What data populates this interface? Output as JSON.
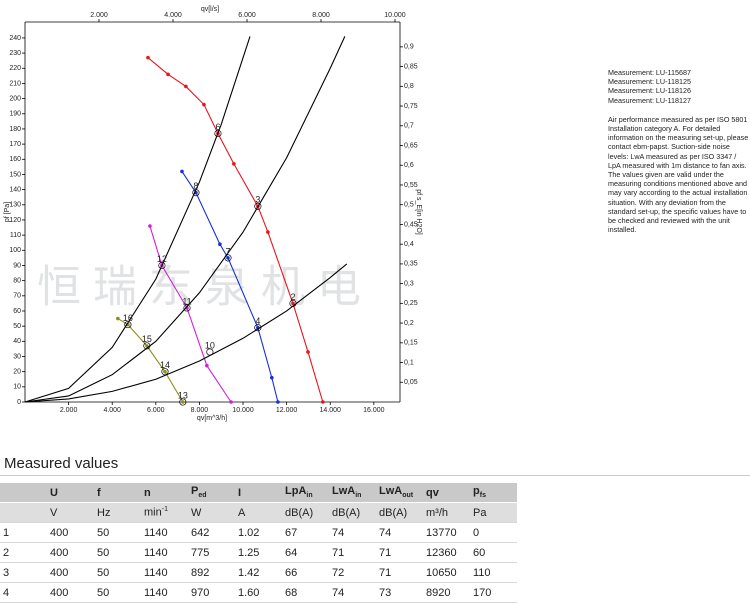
{
  "chart_data": {
    "type": "line",
    "x_label": "qv[m^3/h]",
    "x2_label": "qv[l/s]",
    "y_label": "pf [Pa]",
    "y2_label": "pf s_E[in H2O]",
    "xlim": [
      0,
      17200
    ],
    "xticks": [
      {
        "value": 2000,
        "label": "2.000"
      },
      {
        "value": 4000,
        "label": "4.000"
      },
      {
        "value": 6000,
        "label": "6.000"
      },
      {
        "value": 8000,
        "label": "8.000"
      },
      {
        "value": 10000,
        "label": "10.000"
      },
      {
        "value": 12000,
        "label": "12.000"
      },
      {
        "value": 14000,
        "label": "14.000"
      },
      {
        "value": 16000,
        "label": "16.000"
      }
    ],
    "x2lim": [
      0,
      10135
    ],
    "x2ticks": [
      {
        "value": 2000,
        "label": "2.000"
      },
      {
        "value": 4000,
        "label": "4.000"
      },
      {
        "value": 6000,
        "label": "6.000"
      },
      {
        "value": 8000,
        "label": "8.000"
      },
      {
        "value": 10000,
        "label": "10.000"
      }
    ],
    "ylim": [
      0,
      250.5
    ],
    "yticks": [
      0,
      10,
      20,
      30,
      40,
      50,
      60,
      70,
      80,
      90,
      100,
      110,
      120,
      130,
      140,
      150,
      160,
      170,
      180,
      190,
      200,
      210,
      220,
      230,
      240
    ],
    "y2lim": [
      0,
      0.963
    ],
    "y2ticks": [
      {
        "value": 0.05,
        "label": "0,05"
      },
      {
        "value": 0.1,
        "label": "0,1"
      },
      {
        "value": 0.15,
        "label": "0,15"
      },
      {
        "value": 0.2,
        "label": "0,2"
      },
      {
        "value": 0.25,
        "label": "0,25"
      },
      {
        "value": 0.3,
        "label": "0,3"
      },
      {
        "value": 0.35,
        "label": "0,35"
      },
      {
        "value": 0.4,
        "label": "0,4"
      },
      {
        "value": 0.45,
        "label": "0,45"
      },
      {
        "value": 0.5,
        "label": "0,5"
      },
      {
        "value": 0.55,
        "label": "0,55"
      },
      {
        "value": 0.6,
        "label": "0,6"
      },
      {
        "value": 0.65,
        "label": "0,65"
      },
      {
        "value": 0.7,
        "label": "0,7"
      },
      {
        "value": 0.75,
        "label": "0,75"
      },
      {
        "value": 0.8,
        "label": "0,8"
      },
      {
        "value": 0.85,
        "label": "0,85"
      },
      {
        "value": 0.9,
        "label": "0,9"
      }
    ],
    "grid": false,
    "series": [
      {
        "color": "#e8141c",
        "markers": true,
        "x": [
          5640,
          6560,
          7380,
          8210,
          8850,
          9580,
          10680,
          11140,
          12290,
          12980,
          13660
        ],
        "values": [
          227,
          216,
          208,
          196,
          177,
          157,
          129,
          112,
          65,
          33,
          0
        ]
      },
      {
        "color": "#1a2fd6",
        "markers": true,
        "x": [
          7200,
          7840,
          8940,
          9310,
          10680,
          11320,
          11600
        ],
        "values": [
          152,
          138,
          104,
          95,
          49,
          16,
          0
        ]
      },
      {
        "color": "#d21ee0",
        "markers": true,
        "x": [
          5730,
          6280,
          7430,
          8340,
          9450
        ],
        "values": [
          116,
          90,
          62,
          24,
          0
        ]
      },
      {
        "color": "#8f8f1e",
        "markers": true,
        "x": [
          4260,
          4720,
          5590,
          6420,
          7240
        ],
        "values": [
          55,
          51,
          37,
          20,
          0
        ]
      },
      {
        "color": "#000000",
        "markers": false,
        "x": [
          0,
          2000,
          4000,
          6000,
          8000,
          9000,
          10320
        ],
        "values": [
          0,
          9,
          36,
          81,
          145,
          183,
          241
        ]
      },
      {
        "color": "#000000",
        "markers": false,
        "x": [
          0,
          2000,
          4000,
          6000,
          8000,
          10000,
          12000,
          14000,
          14670
        ],
        "values": [
          0,
          4,
          18,
          40,
          72,
          112,
          161,
          220,
          241
        ]
      },
      {
        "color": "#000000",
        "markers": false,
        "x": [
          0,
          2000,
          4000,
          6000,
          8000,
          10000,
          12000,
          14000,
          14760
        ],
        "values": [
          0,
          2,
          7,
          15,
          27,
          42,
          60,
          82,
          91
        ]
      }
    ],
    "annotations": [
      {
        "text": "2",
        "x": 12290,
        "y": 65
      },
      {
        "text": "3",
        "x": 10680,
        "y": 129
      },
      {
        "text": "4",
        "x": 10680,
        "y": 49
      },
      {
        "text": "6",
        "x": 8850,
        "y": 177
      },
      {
        "text": "7",
        "x": 9310,
        "y": 95
      },
      {
        "text": "8",
        "x": 7840,
        "y": 138
      },
      {
        "text": "10",
        "x": 8480,
        "y": 33
      },
      {
        "text": "11",
        "x": 7430,
        "y": 62
      },
      {
        "text": "12",
        "x": 6280,
        "y": 90
      },
      {
        "text": "13",
        "x": 7240,
        "y": 0
      },
      {
        "text": "14",
        "x": 6420,
        "y": 20
      },
      {
        "text": "15",
        "x": 5590,
        "y": 37
      },
      {
        "text": "16",
        "x": 4720,
        "y": 51
      }
    ],
    "watermark": "恒瑞东泉机电"
  },
  "notes": {
    "measurements": [
      "Measurement: LU-115687",
      "Measurement: LU-118125",
      "Measurement: LU-118126",
      "Measurement: LU-118127"
    ],
    "paragraph": [
      "Air performance measured as per ISO 5801",
      "Installation category A. For detailed",
      "information on the measuring set-up, please",
      "contact ebm-papst. Suction-side noise",
      "levels: LwA measured as per ISO 3347 /",
      "LpA measured with 1m distance to fan axis.",
      "The values given are valid under the",
      "measuring conditions mentioned above and",
      "may vary according to the actual installation",
      "situation. With any deviation from the",
      "standard set-up, the specific values have to",
      "be checked and reviewed with the unit",
      "installed."
    ]
  },
  "table": {
    "title": "Measured values",
    "header": [
      null,
      "U",
      "f",
      "n",
      {
        "main": "P",
        "sub": "ed"
      },
      "I",
      {
        "main": "LpA",
        "sub": "in"
      },
      {
        "main": "LwA",
        "sub": "in"
      },
      {
        "main": "LwA",
        "sub": "out"
      },
      "qv",
      {
        "main": "p",
        "sub": "fs"
      }
    ],
    "units": [
      null,
      "V",
      "Hz",
      {
        "main": "min",
        "sup": "-1"
      },
      "W",
      "A",
      "dB(A)",
      "dB(A)",
      "dB(A)",
      "m³/h",
      "Pa"
    ],
    "rows": [
      [
        "1",
        "400",
        "50",
        "1140",
        "642",
        "1.02",
        "67",
        "74",
        "74",
        "13770",
        "0"
      ],
      [
        "2",
        "400",
        "50",
        "1140",
        "775",
        "1.25",
        "64",
        "71",
        "71",
        "12360",
        "60"
      ],
      [
        "3",
        "400",
        "50",
        "1140",
        "892",
        "1.42",
        "66",
        "72",
        "71",
        "10650",
        "110"
      ],
      [
        "4",
        "400",
        "50",
        "1140",
        "970",
        "1.60",
        "68",
        "74",
        "73",
        "8920",
        "170"
      ]
    ]
  }
}
